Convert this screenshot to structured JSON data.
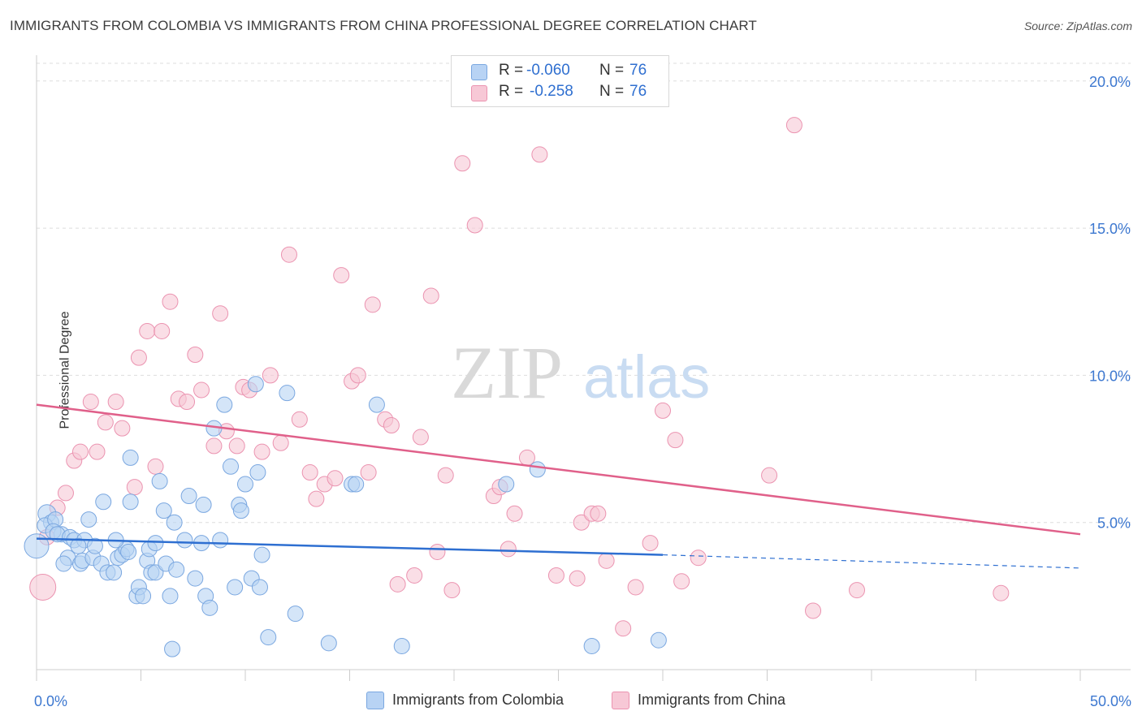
{
  "title": "IMMIGRANTS FROM COLOMBIA VS IMMIGRANTS FROM CHINA PROFESSIONAL DEGREE CORRELATION CHART",
  "source": "Source: ZipAtlas.com",
  "watermark": {
    "zip": "ZIP",
    "atlas": "atlas"
  },
  "legend": {
    "r_label": "R =",
    "n_label": "N =",
    "colombia": {
      "r": "-0.060",
      "n": "76"
    },
    "china": {
      "r": "-0.258",
      "n": "76"
    }
  },
  "colors": {
    "colombia_fill": "#b8d3f4",
    "colombia_stroke": "#7aa7e0",
    "colombia_line": "#2e6fd1",
    "china_fill": "#f7c8d6",
    "china_stroke": "#eb93b0",
    "china_line": "#e0608a",
    "axis_text": "#3d78d0",
    "grid": "#dddddd"
  },
  "chart_data": {
    "type": "scatter",
    "title": "IMMIGRANTS FROM COLOMBIA VS IMMIGRANTS FROM CHINA PROFESSIONAL DEGREE CORRELATION CHART",
    "xlabel": "",
    "ylabel": "Professional Degree",
    "xlim": [
      0,
      50
    ],
    "ylim": [
      0,
      20.6
    ],
    "x_tick_labels": [
      "0.0%",
      "50.0%"
    ],
    "y_ticks": [
      5,
      10,
      15,
      20
    ],
    "y_tick_labels": [
      "5.0%",
      "10.0%",
      "15.0%",
      "20.0%"
    ],
    "grid": true,
    "legend_position": "top-center",
    "series": [
      {
        "name": "Immigrants from Colombia",
        "r": -0.06,
        "n": 76,
        "trend": {
          "x0": 0,
          "y0": 4.45,
          "x1": 30,
          "y1": 3.9,
          "dashed_to_x": 50,
          "dashed_to_y": 3.45
        },
        "points": [
          [
            0.5,
            5.3
          ],
          [
            0.7,
            5.0
          ],
          [
            0.4,
            4.9
          ],
          [
            0.9,
            5.1
          ],
          [
            1.2,
            4.6
          ],
          [
            0.8,
            4.7
          ],
          [
            1.0,
            4.6
          ],
          [
            1.6,
            4.5
          ],
          [
            1.8,
            4.4
          ],
          [
            2.3,
            4.4
          ],
          [
            2.0,
            4.2
          ],
          [
            1.5,
            3.8
          ],
          [
            2.1,
            3.6
          ],
          [
            2.2,
            3.7
          ],
          [
            2.7,
            3.8
          ],
          [
            2.8,
            4.2
          ],
          [
            3.1,
            3.6
          ],
          [
            3.4,
            3.3
          ],
          [
            3.7,
            3.3
          ],
          [
            3.9,
            3.8
          ],
          [
            4.1,
            3.9
          ],
          [
            4.3,
            4.1
          ],
          [
            4.4,
            4.0
          ],
          [
            3.8,
            4.4
          ],
          [
            3.2,
            5.7
          ],
          [
            2.5,
            5.1
          ],
          [
            4.5,
            5.7
          ],
          [
            4.8,
            2.5
          ],
          [
            4.9,
            2.8
          ],
          [
            5.1,
            2.5
          ],
          [
            5.3,
            3.7
          ],
          [
            5.4,
            4.1
          ],
          [
            5.5,
            3.3
          ],
          [
            5.7,
            3.3
          ],
          [
            5.9,
            6.4
          ],
          [
            6.1,
            5.4
          ],
          [
            6.2,
            3.6
          ],
          [
            6.4,
            2.5
          ],
          [
            6.5,
            0.7
          ],
          [
            6.6,
            5.0
          ],
          [
            6.7,
            3.4
          ],
          [
            7.1,
            4.4
          ],
          [
            7.3,
            5.9
          ],
          [
            7.6,
            3.1
          ],
          [
            7.9,
            4.3
          ],
          [
            8.0,
            5.6
          ],
          [
            8.1,
            2.5
          ],
          [
            8.3,
            2.1
          ],
          [
            8.5,
            8.2
          ],
          [
            8.8,
            4.4
          ],
          [
            9.0,
            9.0
          ],
          [
            9.3,
            6.9
          ],
          [
            9.5,
            2.8
          ],
          [
            9.7,
            5.6
          ],
          [
            9.8,
            5.4
          ],
          [
            10.0,
            6.3
          ],
          [
            10.3,
            3.1
          ],
          [
            10.5,
            9.7
          ],
          [
            10.6,
            6.7
          ],
          [
            10.7,
            2.8
          ],
          [
            10.8,
            3.9
          ],
          [
            11.1,
            1.1
          ],
          [
            12.0,
            9.4
          ],
          [
            12.4,
            1.9
          ],
          [
            14.0,
            0.9
          ],
          [
            15.1,
            6.3
          ],
          [
            15.3,
            6.3
          ],
          [
            16.3,
            9.0
          ],
          [
            17.5,
            0.8
          ],
          [
            22.5,
            6.3
          ],
          [
            24.0,
            6.8
          ],
          [
            26.6,
            0.8
          ],
          [
            29.8,
            1.0
          ],
          [
            5.7,
            4.3
          ],
          [
            4.5,
            7.2
          ],
          [
            1.3,
            3.6
          ]
        ]
      },
      {
        "name": "Immigrants from China",
        "r": -0.258,
        "n": 76,
        "trend": {
          "x0": 0,
          "y0": 9.0,
          "x1": 50,
          "y1": 4.6
        },
        "points": [
          [
            0.5,
            4.5
          ],
          [
            0.3,
            2.8
          ],
          [
            1.0,
            5.5
          ],
          [
            1.4,
            6.0
          ],
          [
            1.8,
            7.1
          ],
          [
            2.1,
            7.4
          ],
          [
            2.6,
            9.1
          ],
          [
            2.9,
            7.4
          ],
          [
            3.3,
            8.4
          ],
          [
            3.8,
            9.1
          ],
          [
            4.1,
            8.2
          ],
          [
            4.7,
            6.2
          ],
          [
            4.9,
            10.6
          ],
          [
            5.3,
            11.5
          ],
          [
            5.7,
            6.9
          ],
          [
            6.0,
            11.5
          ],
          [
            6.4,
            12.5
          ],
          [
            6.8,
            9.2
          ],
          [
            7.2,
            9.1
          ],
          [
            7.6,
            10.7
          ],
          [
            7.9,
            9.5
          ],
          [
            8.5,
            7.6
          ],
          [
            8.8,
            12.1
          ],
          [
            9.1,
            8.1
          ],
          [
            9.6,
            7.6
          ],
          [
            9.9,
            9.6
          ],
          [
            10.2,
            9.5
          ],
          [
            10.8,
            7.4
          ],
          [
            11.2,
            10.0
          ],
          [
            11.7,
            7.7
          ],
          [
            12.1,
            14.1
          ],
          [
            12.6,
            8.5
          ],
          [
            13.1,
            6.7
          ],
          [
            13.4,
            5.8
          ],
          [
            13.8,
            6.3
          ],
          [
            14.3,
            6.5
          ],
          [
            14.6,
            13.4
          ],
          [
            15.1,
            9.8
          ],
          [
            15.4,
            10.0
          ],
          [
            15.9,
            6.7
          ],
          [
            16.1,
            12.4
          ],
          [
            16.7,
            8.5
          ],
          [
            17.0,
            8.3
          ],
          [
            17.3,
            2.9
          ],
          [
            18.1,
            3.2
          ],
          [
            18.4,
            7.9
          ],
          [
            18.9,
            12.7
          ],
          [
            19.2,
            4.0
          ],
          [
            19.6,
            6.6
          ],
          [
            19.9,
            2.7
          ],
          [
            20.4,
            17.2
          ],
          [
            21.0,
            15.1
          ],
          [
            21.9,
            5.9
          ],
          [
            22.2,
            6.2
          ],
          [
            22.6,
            4.1
          ],
          [
            22.9,
            5.3
          ],
          [
            23.5,
            7.2
          ],
          [
            24.1,
            17.5
          ],
          [
            24.9,
            3.2
          ],
          [
            25.9,
            3.1
          ],
          [
            26.1,
            5.0
          ],
          [
            26.6,
            5.3
          ],
          [
            26.9,
            5.3
          ],
          [
            27.3,
            3.7
          ],
          [
            28.1,
            1.4
          ],
          [
            28.7,
            2.8
          ],
          [
            29.4,
            4.3
          ],
          [
            30.0,
            8.8
          ],
          [
            30.6,
            7.8
          ],
          [
            30.9,
            3.0
          ],
          [
            31.7,
            3.8
          ],
          [
            35.1,
            6.6
          ],
          [
            36.3,
            18.5
          ],
          [
            37.2,
            2.0
          ],
          [
            39.3,
            2.7
          ],
          [
            46.2,
            2.6
          ]
        ]
      }
    ]
  },
  "bottom_legend": {
    "colombia": "Immigrants from Colombia",
    "china": "Immigrants from China"
  }
}
